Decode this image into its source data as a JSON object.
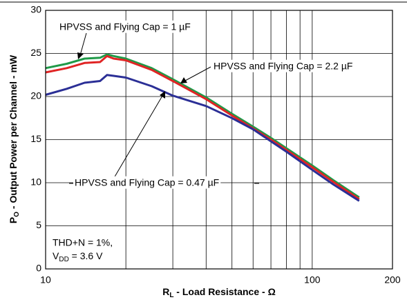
{
  "chart_data": {
    "type": "line",
    "xlabel": {
      "main": "R",
      "sub": "L",
      "rest": " - Load Resistance - Ω"
    },
    "ylabel": {
      "main": "P",
      "sub": "O",
      "rest": " - Output Power per Channel - mW"
    },
    "log_x": true,
    "grid": true,
    "xlim": [
      10,
      200
    ],
    "xticks": [
      10,
      100,
      200
    ],
    "xgrid_minor": [
      20,
      30,
      40,
      50,
      60,
      70,
      80,
      90
    ],
    "ylim": [
      0,
      30
    ],
    "yticks": [
      0,
      5,
      10,
      15,
      20,
      25,
      30
    ],
    "x": [
      10,
      12,
      14,
      16,
      17,
      18,
      20,
      25,
      30,
      40,
      50,
      60,
      70,
      80,
      100,
      120,
      150
    ],
    "series": [
      {
        "name": "HPVSS and Flying Cap = 1 µF",
        "color": "#1f9a48",
        "values": [
          23.3,
          23.8,
          24.4,
          24.5,
          24.9,
          24.7,
          24.4,
          23.3,
          22.0,
          19.9,
          18.0,
          16.5,
          15.2,
          14.0,
          12.0,
          10.3,
          8.3
        ]
      },
      {
        "name": "HPVSS and Flying Cap = 2.2 µF",
        "color": "#e02424",
        "values": [
          22.8,
          23.3,
          23.9,
          24.0,
          24.7,
          24.4,
          24.2,
          23.1,
          21.8,
          19.7,
          17.8,
          16.3,
          15.0,
          13.8,
          11.8,
          10.1,
          8.1
        ]
      },
      {
        "name": "HPVSS and Flying Cap = 0.47 µF",
        "color": "#2b2f96",
        "values": [
          20.2,
          20.9,
          21.6,
          21.8,
          22.5,
          22.4,
          22.2,
          21.2,
          20.1,
          18.9,
          17.5,
          16.2,
          14.8,
          13.6,
          11.5,
          9.8,
          7.9
        ]
      }
    ],
    "note": {
      "line1": "THD+N = 1%,",
      "line2_main": "V",
      "line2_sub": "DD",
      "line2_rest": " = 3.6 V"
    }
  }
}
